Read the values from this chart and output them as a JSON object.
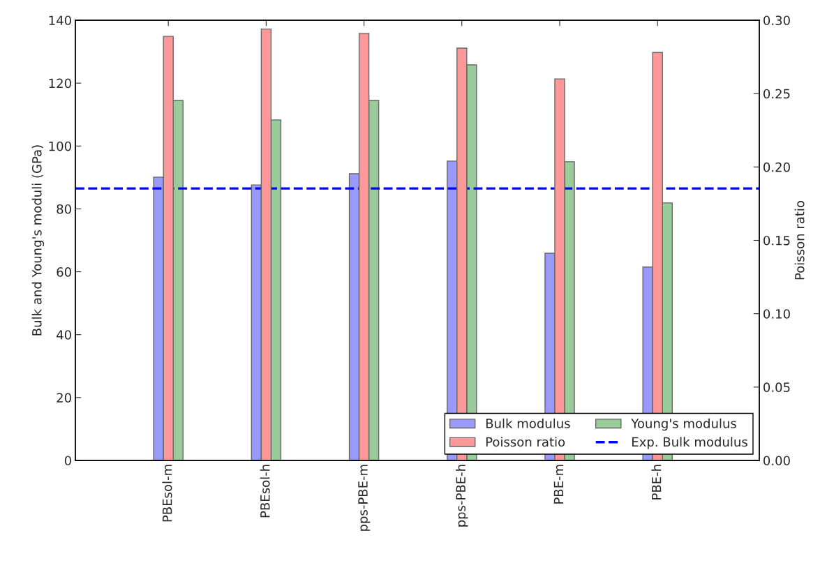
{
  "chart_data": {
    "type": "bar",
    "ylabel": "Bulk and Young's moduli (GPa)",
    "y2label": "Poisson ratio",
    "categories": [
      "PBEsol-m",
      "PBEsol-h",
      "pps-PBE-m",
      "pps-PBE-h",
      "PBE-m",
      "PBE-h"
    ],
    "series": [
      {
        "name": "Bulk modulus",
        "color": "#9999ff",
        "values": [
          90.1,
          87.6,
          91.2,
          95.2,
          65.9,
          61.5
        ]
      },
      {
        "name": "Poisson ratio",
        "color": "#ff9999",
        "axis": "y2",
        "values": [
          0.289,
          0.294,
          0.291,
          0.281,
          0.26,
          0.278
        ]
      },
      {
        "name": "Young's modulus",
        "color": "#99cc99",
        "values": [
          114.5,
          108.3,
          114.5,
          125.8,
          95.0,
          81.9
        ]
      }
    ],
    "ylim": [
      0,
      140
    ],
    "yticks": [
      0,
      20,
      40,
      60,
      80,
      100,
      120,
      140
    ],
    "y2lim": [
      0,
      0.3
    ],
    "y2ticks": [
      {
        "value": 0,
        "label": "0.00"
      },
      {
        "value": 0.05,
        "label": "0.05"
      },
      {
        "value": 0.1,
        "label": "0.10"
      },
      {
        "value": 0.15,
        "label": "0.15"
      },
      {
        "value": 0.2,
        "label": "0.20"
      },
      {
        "value": 0.25,
        "label": "0.25"
      },
      {
        "value": 0.3,
        "label": "0.30"
      }
    ],
    "ref_lines": [
      {
        "axis": "y",
        "value": 86.5,
        "label": "Exp. Bulk modulus",
        "color": "#0000ff",
        "line_style": "dashed"
      }
    ],
    "legend": "bottom right",
    "grid": false
  }
}
